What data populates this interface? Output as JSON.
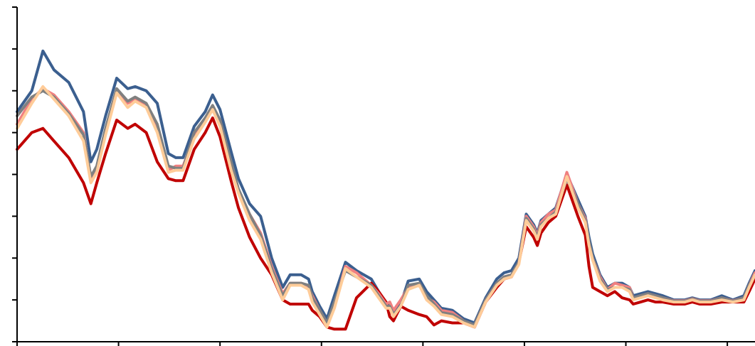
{
  "chart_data": {
    "type": "line",
    "title": "",
    "xlabel": "",
    "ylabel": "",
    "grid": false,
    "legend": "none",
    "xlim": [
      0,
      1000
    ],
    "ylim": [
      0,
      8
    ],
    "x_ticks": [
      0,
      137.5,
      275,
      412.5,
      550,
      687.5,
      825,
      962.5
    ],
    "y_ticks": [
      0,
      1,
      2,
      3,
      4,
      5,
      6,
      7,
      8
    ],
    "x": [
      0,
      20,
      35,
      50,
      70,
      90,
      100,
      108,
      120,
      135,
      150,
      160,
      175,
      190,
      205,
      215,
      225,
      240,
      255,
      265,
      275,
      290,
      300,
      315,
      330,
      345,
      360,
      370,
      385,
      395,
      400,
      410,
      420,
      430,
      445,
      460,
      480,
      490,
      500,
      505,
      510,
      520,
      530,
      545,
      555,
      565,
      575,
      590,
      605,
      620,
      635,
      650,
      660,
      670,
      680,
      690,
      700,
      705,
      710,
      720,
      730,
      745,
      760,
      770,
      775,
      780,
      790,
      800,
      810,
      820,
      830,
      835,
      845,
      855,
      865,
      875,
      890,
      905,
      915,
      925,
      940,
      955,
      970,
      985,
      992,
      1000
    ],
    "series": [
      {
        "color": "#3B5F8F",
        "values": [
          5.5,
          6.0,
          6.95,
          6.5,
          6.2,
          5.5,
          4.3,
          4.6,
          5.4,
          6.3,
          6.05,
          6.1,
          6.0,
          5.7,
          4.5,
          4.4,
          4.4,
          5.15,
          5.5,
          5.9,
          5.55,
          4.55,
          3.9,
          3.3,
          3.0,
          2.0,
          1.3,
          1.6,
          1.6,
          1.5,
          1.2,
          0.85,
          0.55,
          1.1,
          1.9,
          1.7,
          1.5,
          1.2,
          0.9,
          0.9,
          0.7,
          0.9,
          1.45,
          1.5,
          1.2,
          1.0,
          0.8,
          0.75,
          0.55,
          0.45,
          1.05,
          1.5,
          1.65,
          1.7,
          2.0,
          3.05,
          2.8,
          2.6,
          2.9,
          3.05,
          3.2,
          4.0,
          3.4,
          3.0,
          2.5,
          2.1,
          1.6,
          1.3,
          1.4,
          1.4,
          1.3,
          1.1,
          1.15,
          1.2,
          1.15,
          1.1,
          1.0,
          1.0,
          1.05,
          1.0,
          1.0,
          1.1,
          1.0,
          1.1,
          1.4,
          1.7
        ]
      },
      {
        "color": "#C00000",
        "values": [
          4.6,
          5.0,
          5.1,
          4.8,
          4.4,
          3.8,
          3.3,
          3.8,
          4.5,
          5.3,
          5.1,
          5.2,
          5.0,
          4.3,
          3.9,
          3.85,
          3.85,
          4.6,
          5.0,
          5.35,
          4.9,
          3.85,
          3.2,
          2.5,
          2.0,
          1.6,
          1.0,
          0.9,
          0.9,
          0.9,
          0.75,
          0.6,
          0.35,
          0.3,
          0.3,
          1.05,
          1.4,
          1.2,
          0.95,
          0.6,
          0.5,
          0.85,
          0.75,
          0.65,
          0.6,
          0.4,
          0.5,
          0.45,
          0.45,
          0.35,
          0.95,
          1.3,
          1.5,
          1.55,
          1.9,
          2.75,
          2.5,
          2.3,
          2.6,
          2.85,
          3.0,
          3.75,
          3.0,
          2.55,
          1.8,
          1.3,
          1.2,
          1.1,
          1.2,
          1.05,
          1.0,
          0.9,
          0.95,
          1.0,
          0.95,
          0.95,
          0.9,
          0.9,
          0.95,
          0.9,
          0.9,
          0.95,
          0.95,
          0.95,
          1.2,
          1.5
        ]
      },
      {
        "color": "#F08080",
        "values": [
          5.2,
          5.8,
          6.05,
          5.9,
          5.5,
          5.0,
          3.9,
          4.1,
          5.0,
          6.0,
          5.7,
          5.8,
          5.65,
          5.1,
          4.1,
          4.2,
          4.2,
          4.9,
          5.3,
          5.6,
          5.3,
          4.2,
          3.6,
          3.05,
          2.6,
          1.8,
          1.15,
          1.4,
          1.4,
          1.3,
          1.1,
          0.75,
          0.45,
          0.85,
          1.8,
          1.65,
          1.35,
          1.15,
          0.9,
          0.95,
          0.75,
          1.0,
          1.3,
          1.4,
          1.05,
          0.95,
          0.75,
          0.7,
          0.5,
          0.4,
          1.0,
          1.4,
          1.55,
          1.6,
          1.9,
          3.0,
          2.75,
          2.55,
          2.85,
          3.05,
          3.15,
          4.05,
          3.3,
          2.95,
          2.35,
          2.0,
          1.55,
          1.25,
          1.4,
          1.35,
          1.3,
          1.05,
          1.1,
          1.15,
          1.1,
          1.05,
          0.98,
          0.98,
          1.03,
          0.98,
          0.98,
          1.05,
          0.98,
          1.05,
          1.35,
          1.65
        ]
      },
      {
        "color": "#808080",
        "values": [
          5.4,
          5.85,
          6.0,
          5.85,
          5.45,
          4.95,
          3.95,
          4.2,
          5.1,
          6.05,
          5.75,
          5.85,
          5.7,
          5.2,
          4.2,
          4.15,
          4.15,
          5.0,
          5.35,
          5.65,
          5.3,
          4.3,
          3.65,
          3.05,
          2.55,
          1.75,
          1.1,
          1.4,
          1.4,
          1.35,
          1.05,
          0.75,
          0.45,
          0.95,
          1.7,
          1.55,
          1.35,
          1.1,
          0.85,
          0.85,
          0.65,
          0.85,
          1.35,
          1.4,
          1.1,
          0.9,
          0.7,
          0.65,
          0.5,
          0.4,
          1.0,
          1.4,
          1.55,
          1.6,
          1.9,
          2.95,
          2.7,
          2.5,
          2.8,
          2.95,
          3.1,
          3.9,
          3.3,
          2.9,
          2.4,
          2.0,
          1.5,
          1.25,
          1.3,
          1.3,
          1.25,
          1.05,
          1.1,
          1.15,
          1.1,
          1.05,
          0.97,
          0.97,
          1.02,
          0.97,
          0.97,
          1.05,
          0.97,
          1.05,
          1.35,
          1.6
        ]
      },
      {
        "color": "#FFCC99",
        "values": [
          5.1,
          5.7,
          6.1,
          5.8,
          5.4,
          4.8,
          3.8,
          4.05,
          4.95,
          5.95,
          5.6,
          5.75,
          5.6,
          5.0,
          4.05,
          4.1,
          4.1,
          4.85,
          5.25,
          5.55,
          5.15,
          4.1,
          3.55,
          2.9,
          2.45,
          1.65,
          1.0,
          1.35,
          1.35,
          1.25,
          0.95,
          0.65,
          0.35,
          0.8,
          1.75,
          1.55,
          1.3,
          1.05,
          0.8,
          0.8,
          0.6,
          0.85,
          1.25,
          1.35,
          1.0,
          0.85,
          0.65,
          0.6,
          0.45,
          0.35,
          0.95,
          1.35,
          1.5,
          1.55,
          1.85,
          2.9,
          2.65,
          2.45,
          2.75,
          2.95,
          3.05,
          3.95,
          3.2,
          2.85,
          2.3,
          1.95,
          1.45,
          1.2,
          1.3,
          1.3,
          1.2,
          1.0,
          1.05,
          1.1,
          1.05,
          1.0,
          0.95,
          0.95,
          1.0,
          0.95,
          0.95,
          1.0,
          0.95,
          1.0,
          1.3,
          1.6
        ]
      }
    ]
  }
}
